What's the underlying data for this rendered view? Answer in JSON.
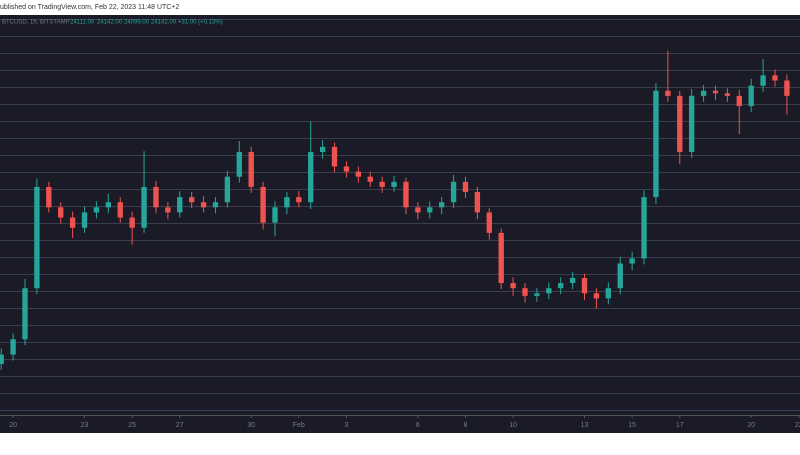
{
  "publisher": "ublished on TradingView.com, Feb 22, 2023 11:48 UTC+2",
  "chart_data": {
    "type": "candlestick",
    "symbol": "BTCUSD, 1h, BITSTAMP",
    "legend_values": [
      "24111.00",
      "24142.00",
      "24099.00",
      "24142.00",
      "+31.00 (+0.13%)"
    ],
    "up_color": "#26a69a",
    "down_color": "#ef5350",
    "xlim": [
      -0.1,
      67.1
    ],
    "xticks": [
      {
        "value": 1,
        "label": "20"
      },
      {
        "value": 7,
        "label": "23"
      },
      {
        "value": 11,
        "label": "25"
      },
      {
        "value": 15,
        "label": "27"
      },
      {
        "value": 21,
        "label": "30"
      },
      {
        "value": 25,
        "label": "Feb"
      },
      {
        "value": 29,
        "label": "3"
      },
      {
        "value": 35,
        "label": "6"
      },
      {
        "value": 39,
        "label": "8"
      },
      {
        "value": 43,
        "label": "10"
      },
      {
        "value": 49,
        "label": "13"
      },
      {
        "value": 53,
        "label": "15"
      },
      {
        "value": 57,
        "label": "17"
      },
      {
        "value": 63,
        "label": "20"
      },
      {
        "value": 67,
        "label": "22"
      }
    ],
    "ylim": [
      20700,
      25400
    ],
    "open": [
      21300,
      21410,
      21590,
      22190,
      23380,
      23140,
      23020,
      22900,
      23080,
      23140,
      23200,
      23020,
      22900,
      23380,
      23140,
      23080,
      23260,
      23200,
      23140,
      23200,
      23500,
      23790,
      23380,
      22960,
      23140,
      23260,
      23200,
      23790,
      23850,
      23620,
      23560,
      23500,
      23440,
      23380,
      23440,
      23140,
      23080,
      23140,
      23200,
      23440,
      23320,
      23080,
      22840,
      22250,
      22190,
      22100,
      22130,
      22190,
      22250,
      22310,
      22130,
      22070,
      22190,
      22480,
      22540,
      23260,
      24510,
      24450,
      23790,
      24450,
      24510,
      24480,
      24450,
      24330,
      24570,
      24690,
      24630
    ],
    "high": [
      21480,
      21660,
      22300,
      23480,
      23440,
      23200,
      23090,
      23150,
      23210,
      23300,
      23260,
      23090,
      23800,
      23450,
      23200,
      23330,
      23320,
      23270,
      23260,
      23570,
      23920,
      23850,
      23440,
      23210,
      23320,
      23330,
      24150,
      23930,
      23900,
      23680,
      23620,
      23560,
      23500,
      23510,
      23490,
      23200,
      23210,
      23260,
      23520,
      23500,
      23380,
      23130,
      22890,
      22320,
      22250,
      22190,
      22260,
      22320,
      22380,
      22360,
      22190,
      22260,
      22560,
      22620,
      23340,
      24600,
      24980,
      24510,
      24530,
      24580,
      24570,
      24540,
      24520,
      24650,
      24880,
      24760,
      24700
    ],
    "low": [
      21230,
      21340,
      21520,
      22120,
      23080,
      22950,
      22780,
      22840,
      23010,
      23070,
      22960,
      22700,
      22840,
      23070,
      23000,
      23020,
      23130,
      23080,
      23070,
      23140,
      23430,
      23310,
      22880,
      22800,
      23060,
      23140,
      23120,
      23710,
      23550,
      23490,
      23430,
      23380,
      23310,
      23320,
      23060,
      23000,
      23010,
      23060,
      23130,
      23250,
      23000,
      22760,
      22180,
      22100,
      22020,
      22030,
      22060,
      22120,
      22180,
      22050,
      21950,
      22000,
      22120,
      22400,
      22470,
      23180,
      24380,
      23650,
      23720,
      24380,
      24400,
      24380,
      24000,
      24260,
      24500,
      24560,
      24230
    ],
    "close": [
      21410,
      21590,
      22190,
      23380,
      23140,
      23020,
      22900,
      23080,
      23140,
      23200,
      23020,
      22900,
      23380,
      23140,
      23080,
      23260,
      23200,
      23140,
      23200,
      23500,
      23790,
      23380,
      22960,
      23140,
      23260,
      23200,
      23790,
      23850,
      23620,
      23560,
      23500,
      23440,
      23380,
      23440,
      23140,
      23080,
      23140,
      23200,
      23440,
      23320,
      23080,
      22840,
      22250,
      22190,
      22100,
      22130,
      22190,
      22250,
      22310,
      22130,
      22070,
      22190,
      22480,
      22540,
      23260,
      24510,
      24450,
      23790,
      24450,
      24510,
      24480,
      24450,
      24330,
      24570,
      24690,
      24630,
      24450
    ]
  }
}
